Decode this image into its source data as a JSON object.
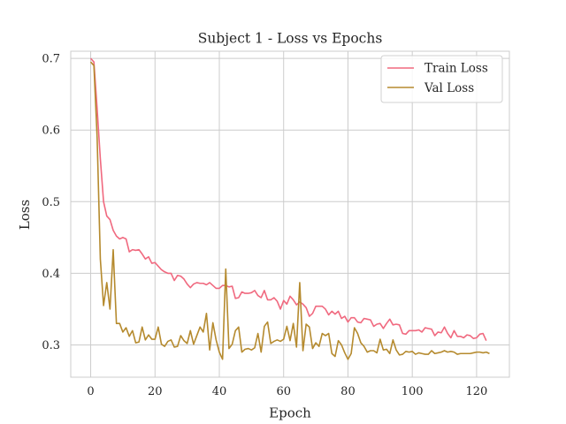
{
  "chart_data": {
    "type": "line",
    "title": "Subject 1 - Loss vs Epochs",
    "xlabel": "Epoch",
    "ylabel": "Loss",
    "xlim": [
      -6.2,
      130.2
    ],
    "ylim": [
      0.255,
      0.71
    ],
    "xticks": [
      0,
      20,
      40,
      60,
      80,
      100,
      120
    ],
    "yticks": [
      0.3,
      0.4,
      0.5,
      0.6,
      0.7
    ],
    "xtick_labels": [
      "0",
      "20",
      "40",
      "60",
      "80",
      "100",
      "120"
    ],
    "ytick_labels": [
      "0.3",
      "0.4",
      "0.5",
      "0.6",
      "0.7"
    ],
    "grid": true,
    "legend_position": "top-right",
    "series": [
      {
        "name": "Train Loss",
        "color": "#f0697f",
        "values": [
          0.7,
          0.695,
          0.63,
          0.56,
          0.5,
          0.48,
          0.475,
          0.46,
          0.452,
          0.448,
          0.45,
          0.448,
          0.43,
          0.433,
          0.432,
          0.433,
          0.427,
          0.42,
          0.423,
          0.414,
          0.415,
          0.41,
          0.405,
          0.402,
          0.4,
          0.4,
          0.39,
          0.397,
          0.396,
          0.392,
          0.385,
          0.38,
          0.385,
          0.387,
          0.386,
          0.386,
          0.384,
          0.387,
          0.383,
          0.379,
          0.379,
          0.383,
          0.383,
          0.381,
          0.382,
          0.365,
          0.366,
          0.374,
          0.372,
          0.372,
          0.373,
          0.376,
          0.369,
          0.366,
          0.376,
          0.363,
          0.363,
          0.366,
          0.361,
          0.35,
          0.362,
          0.357,
          0.368,
          0.363,
          0.356,
          0.36,
          0.357,
          0.352,
          0.34,
          0.344,
          0.354,
          0.354,
          0.354,
          0.35,
          0.342,
          0.347,
          0.343,
          0.347,
          0.337,
          0.34,
          0.332,
          0.338,
          0.338,
          0.332,
          0.331,
          0.337,
          0.336,
          0.335,
          0.326,
          0.329,
          0.33,
          0.323,
          0.33,
          0.336,
          0.328,
          0.329,
          0.328,
          0.316,
          0.315,
          0.32,
          0.32,
          0.32,
          0.321,
          0.318,
          0.324,
          0.323,
          0.322,
          0.313,
          0.318,
          0.317,
          0.325,
          0.316,
          0.31,
          0.32,
          0.312,
          0.312,
          0.31,
          0.314,
          0.313,
          0.309,
          0.31,
          0.315,
          0.316,
          0.306
        ],
        "x_start": 0
      },
      {
        "name": "Val Loss",
        "color": "#b58a2e",
        "values": [
          0.695,
          0.69,
          0.59,
          0.42,
          0.355,
          0.387,
          0.35,
          0.433,
          0.33,
          0.33,
          0.318,
          0.324,
          0.312,
          0.32,
          0.303,
          0.304,
          0.325,
          0.307,
          0.314,
          0.308,
          0.308,
          0.325,
          0.301,
          0.298,
          0.305,
          0.307,
          0.297,
          0.298,
          0.313,
          0.306,
          0.302,
          0.32,
          0.301,
          0.313,
          0.325,
          0.318,
          0.344,
          0.293,
          0.331,
          0.307,
          0.29,
          0.28,
          0.406,
          0.295,
          0.301,
          0.32,
          0.325,
          0.29,
          0.294,
          0.295,
          0.293,
          0.296,
          0.316,
          0.29,
          0.326,
          0.332,
          0.302,
          0.305,
          0.307,
          0.305,
          0.308,
          0.326,
          0.306,
          0.33,
          0.297,
          0.387,
          0.292,
          0.329,
          0.325,
          0.295,
          0.303,
          0.298,
          0.316,
          0.313,
          0.316,
          0.288,
          0.284,
          0.306,
          0.3,
          0.289,
          0.28,
          0.288,
          0.324,
          0.316,
          0.303,
          0.298,
          0.29,
          0.292,
          0.292,
          0.289,
          0.308,
          0.293,
          0.294,
          0.288,
          0.307,
          0.293,
          0.286,
          0.287,
          0.291,
          0.29,
          0.291,
          0.287,
          0.289,
          0.288,
          0.287,
          0.287,
          0.292,
          0.288,
          0.289,
          0.29,
          0.292,
          0.29,
          0.291,
          0.29,
          0.287,
          0.288,
          0.288,
          0.288,
          0.288,
          0.289,
          0.29,
          0.29,
          0.289,
          0.29,
          0.288
        ],
        "x_start": 0
      }
    ]
  }
}
